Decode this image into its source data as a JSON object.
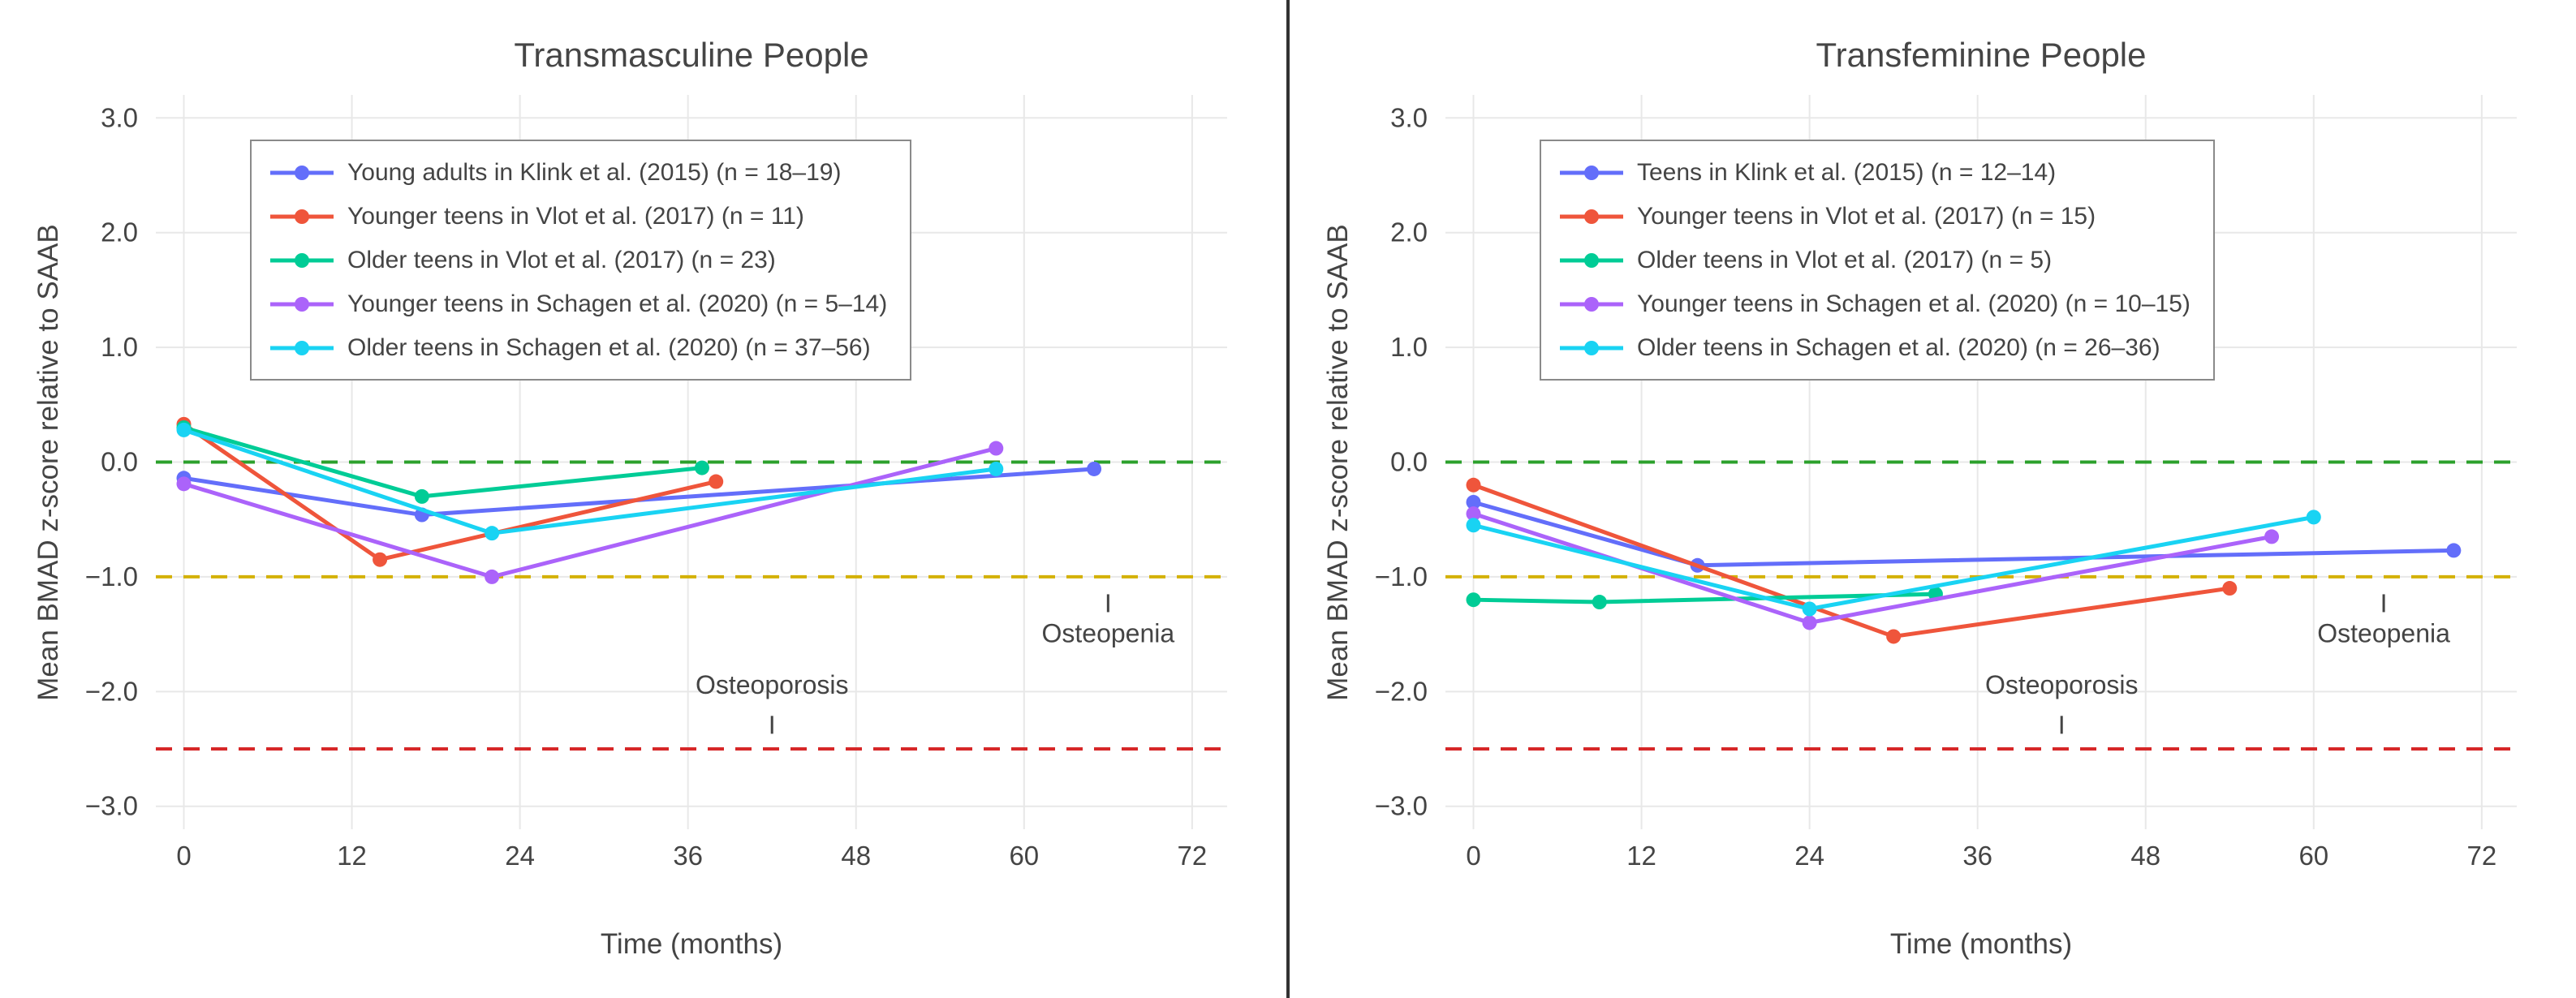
{
  "figure": {
    "background": "#ffffff",
    "divider_color": "#333333"
  },
  "chart_data": [
    {
      "type": "line",
      "title": "Transmasculine People",
      "xlabel": "Time (months)",
      "ylabel": "Mean BMAD z-score relative to SAAB",
      "xlim": [
        -2,
        74.5
      ],
      "ylim": [
        -3.2,
        3.2
      ],
      "xticks": [
        0,
        12,
        24,
        36,
        48,
        60,
        72
      ],
      "yticks": [
        3.0,
        2.0,
        1.0,
        0.0,
        -1.0,
        -2.0,
        -3.0
      ],
      "grid": true,
      "legend_position": "top-left",
      "reference_lines": [
        {
          "name": "zero-line",
          "y": 0.0,
          "color": "#2CA02C",
          "style": "dashed"
        },
        {
          "name": "osteopenia-threshold",
          "y": -1.0,
          "color": "#D4B106",
          "style": "dashed"
        },
        {
          "name": "osteoporosis-threshold",
          "y": -2.5,
          "color": "#D62728",
          "style": "dashed"
        }
      ],
      "annotations": [
        {
          "text": "Osteoporosis",
          "x": 42,
          "y": -2.02,
          "tick_y": -2.29
        },
        {
          "text": "Osteopenia",
          "x": 66,
          "y": -1.57,
          "tick_y": -1.23
        }
      ],
      "series": [
        {
          "name": "Young adults in Klink et al. (2015) (n = 18–19)",
          "color": "#636EFA",
          "x": [
            0,
            17,
            65
          ],
          "y": [
            -0.14,
            -0.46,
            -0.06
          ]
        },
        {
          "name": "Younger teens in Vlot et al. (2017) (n = 11)",
          "color": "#EF553B",
          "x": [
            0,
            14,
            38
          ],
          "y": [
            0.33,
            -0.85,
            -0.17
          ]
        },
        {
          "name": "Older teens in Vlot et al. (2017) (n = 23)",
          "color": "#00CC96",
          "x": [
            0,
            17,
            37
          ],
          "y": [
            0.3,
            -0.3,
            -0.05
          ]
        },
        {
          "name": "Younger teens in Schagen et al. (2020) (n = 5–14)",
          "color": "#AB63FA",
          "x": [
            0,
            22,
            58
          ],
          "y": [
            -0.19,
            -1.0,
            0.12
          ]
        },
        {
          "name": "Older teens in Schagen et al. (2020) (n = 37–56)",
          "color": "#19D3F3",
          "x": [
            0,
            22,
            58
          ],
          "y": [
            0.28,
            -0.62,
            -0.06
          ]
        }
      ]
    },
    {
      "type": "line",
      "title": "Transfeminine People",
      "xlabel": "Time (months)",
      "ylabel": "Mean BMAD z-score relative to SAAB",
      "xlim": [
        -2,
        74.5
      ],
      "ylim": [
        -3.2,
        3.2
      ],
      "xticks": [
        0,
        12,
        24,
        36,
        48,
        60,
        72
      ],
      "yticks": [
        3.0,
        2.0,
        1.0,
        0.0,
        -1.0,
        -2.0,
        -3.0
      ],
      "grid": true,
      "legend_position": "top-left",
      "reference_lines": [
        {
          "name": "zero-line",
          "y": 0.0,
          "color": "#2CA02C",
          "style": "dashed"
        },
        {
          "name": "osteopenia-threshold",
          "y": -1.0,
          "color": "#D4B106",
          "style": "dashed"
        },
        {
          "name": "osteoporosis-threshold",
          "y": -2.5,
          "color": "#D62728",
          "style": "dashed"
        }
      ],
      "annotations": [
        {
          "text": "Osteoporosis",
          "x": 42,
          "y": -2.02,
          "tick_y": -2.29
        },
        {
          "text": "Osteopenia",
          "x": 65,
          "y": -1.57,
          "tick_y": -1.23
        }
      ],
      "series": [
        {
          "name": "Teens in Klink et al. (2015) (n = 12–14)",
          "color": "#636EFA",
          "x": [
            0,
            16,
            70
          ],
          "y": [
            -0.35,
            -0.9,
            -0.77
          ]
        },
        {
          "name": "Younger teens in Vlot et al. (2017) (n = 15)",
          "color": "#EF553B",
          "x": [
            0,
            30,
            54
          ],
          "y": [
            -0.2,
            -1.52,
            -1.1
          ]
        },
        {
          "name": "Older teens in Vlot et al. (2017) (n = 5)",
          "color": "#00CC96",
          "x": [
            0,
            9,
            33
          ],
          "y": [
            -1.2,
            -1.22,
            -1.15
          ]
        },
        {
          "name": "Younger teens in Schagen et al. (2020) (n = 10–15)",
          "color": "#AB63FA",
          "x": [
            0,
            24,
            57
          ],
          "y": [
            -0.45,
            -1.4,
            -0.65
          ]
        },
        {
          "name": "Older teens in Schagen et al. (2020) (n = 26–36)",
          "color": "#19D3F3",
          "x": [
            0,
            24,
            60
          ],
          "y": [
            -0.55,
            -1.28,
            -0.48
          ]
        }
      ]
    }
  ]
}
